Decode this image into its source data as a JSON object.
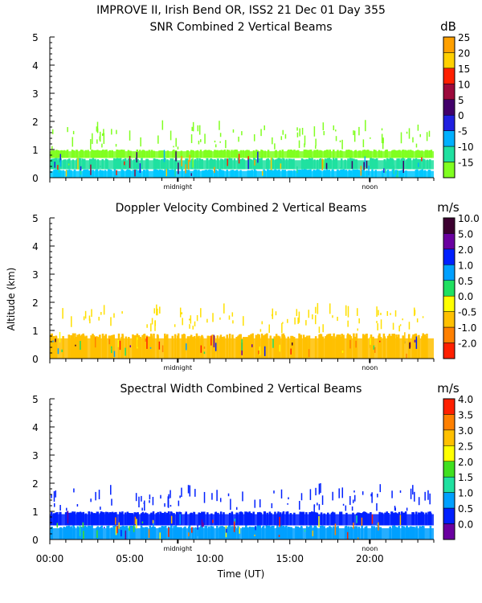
{
  "header": {
    "line1": "IMPROVE II,  Irish Bend OR, ISS2  21 Dec 01 Day 355"
  },
  "y_axis_label": "Altitude (km)",
  "x_axis": {
    "label": "Time (UT)",
    "range_hours": [
      0,
      24
    ],
    "ticks": [
      {
        "v": 0,
        "label": "00:00"
      },
      {
        "v": 5,
        "label": "05:00"
      },
      {
        "v": 10,
        "label": "10:00"
      },
      {
        "v": 15,
        "label": "15:00"
      },
      {
        "v": 20,
        "label": "20:00"
      }
    ],
    "markers": [
      {
        "v": 8,
        "label": "midnight"
      },
      {
        "v": 20,
        "label": "noon"
      }
    ]
  },
  "chart_data": [
    {
      "type": "heatmap",
      "key": "snr",
      "title": "SNR Combined 2 Vertical Beams",
      "unit": "dB",
      "ylim": [
        0,
        5
      ],
      "yticks": [
        0,
        1,
        2,
        3,
        4,
        5
      ],
      "colorbar": [
        {
          "label": "25",
          "color": "#ffa000"
        },
        {
          "label": "20",
          "color": "#ffd000"
        },
        {
          "label": "15",
          "color": "#ff2000"
        },
        {
          "label": "10",
          "color": "#9c0a3c"
        },
        {
          "label": "5",
          "color": "#42006a"
        },
        {
          "label": "0",
          "color": "#2020e0"
        },
        {
          "label": "-5",
          "color": "#00b0ff"
        },
        {
          "label": "-10",
          "color": "#20e0a0"
        },
        {
          "label": "-15",
          "color": "#80ff20"
        }
      ],
      "layers": [
        {
          "from_km": 0.0,
          "to_km": 0.3,
          "color": "#00c8ff"
        },
        {
          "from_km": 0.3,
          "to_km": 0.7,
          "color": "#20e0a0"
        },
        {
          "from_km": 0.7,
          "to_km": 1.0,
          "color": "#80ff20"
        },
        {
          "from_km": 1.0,
          "to_km": 2.2,
          "color": "#80ff20",
          "sparse": true
        }
      ]
    },
    {
      "type": "heatmap",
      "key": "doppler",
      "title": "Doppler Velocity Combined 2 Vertical Beams",
      "unit": "m/s",
      "ylim": [
        0,
        5
      ],
      "yticks": [
        0,
        1,
        2,
        3,
        4,
        5
      ],
      "colorbar": [
        {
          "label": "10.0",
          "color": "#3c0030"
        },
        {
          "label": "5.0",
          "color": "#6a00a0"
        },
        {
          "label": "2.0",
          "color": "#0020ff"
        },
        {
          "label": "1.0",
          "color": "#00a0ff"
        },
        {
          "label": "0.5",
          "color": "#20e060"
        },
        {
          "label": "0.0",
          "color": "#ffff00"
        },
        {
          "label": "-0.5",
          "color": "#ffc000"
        },
        {
          "label": "-1.0",
          "color": "#ff8000"
        },
        {
          "label": "-2.0",
          "color": "#ff2000"
        }
      ],
      "layers": [
        {
          "from_km": 0.0,
          "to_km": 0.9,
          "color": "#ffc000"
        },
        {
          "from_km": 0.9,
          "to_km": 2.1,
          "color": "#ffe000",
          "sparse": true
        }
      ]
    },
    {
      "type": "heatmap",
      "key": "width",
      "title": "Spectral Width Combined 2 Vertical Beams",
      "unit": "m/s",
      "ylim": [
        0,
        5
      ],
      "yticks": [
        0,
        1,
        2,
        3,
        4,
        5
      ],
      "colorbar": [
        {
          "label": "4.0",
          "color": "#ff2000"
        },
        {
          "label": "3.5",
          "color": "#ff8000"
        },
        {
          "label": "3.0",
          "color": "#ffc000"
        },
        {
          "label": "2.5",
          "color": "#ffff00"
        },
        {
          "label": "2.0",
          "color": "#40e020"
        },
        {
          "label": "1.5",
          "color": "#20e0a0"
        },
        {
          "label": "1.0",
          "color": "#00a0ff"
        },
        {
          "label": "0.5",
          "color": "#0020ff"
        },
        {
          "label": "0.0",
          "color": "#6a00a0"
        }
      ],
      "layers": [
        {
          "from_km": 0.0,
          "to_km": 0.5,
          "color": "#00a0ff"
        },
        {
          "from_km": 0.5,
          "to_km": 1.0,
          "color": "#0020ff"
        },
        {
          "from_km": 1.0,
          "to_km": 2.2,
          "color": "#0020ff",
          "sparse": true
        }
      ]
    }
  ]
}
